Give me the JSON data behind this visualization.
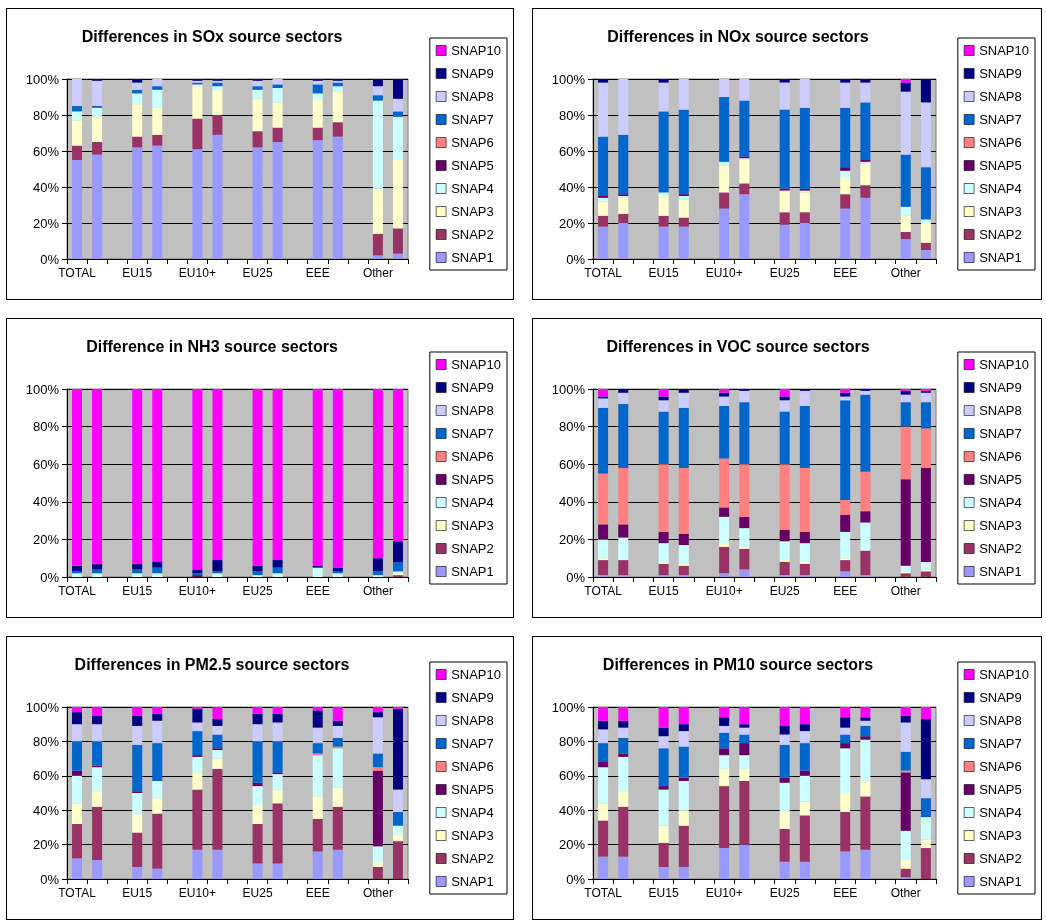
{
  "chart_data": [
    {
      "type": "bar",
      "title": "Differences in SOx source sectors",
      "stacked": true,
      "grid": "y",
      "legend": "right",
      "ylim": [
        0,
        100
      ],
      "yticks": [
        {
          "value": 0,
          "label": "0%"
        },
        {
          "value": 20,
          "label": "20%"
        },
        {
          "value": 40,
          "label": "40%"
        },
        {
          "value": 60,
          "label": "60%"
        },
        {
          "value": 80,
          "label": "80%"
        },
        {
          "value": 100,
          "label": "100%"
        }
      ],
      "categories": [
        "TOTAL",
        null,
        null,
        "EU15",
        null,
        null,
        "EU10+",
        null,
        null,
        "EU25",
        null,
        null,
        "EEE",
        null,
        null,
        "Other",
        null
      ],
      "series": [
        {
          "name": "SNAP1",
          "color": "#9999ff",
          "values": [
            55,
            58,
            null,
            62,
            63,
            null,
            61,
            69,
            null,
            62,
            65,
            null,
            66,
            68,
            null,
            2,
            3
          ]
        },
        {
          "name": "SNAP2",
          "color": "#993366",
          "values": [
            8,
            7,
            null,
            6,
            6,
            null,
            17,
            11,
            null,
            9,
            8,
            null,
            7,
            8,
            null,
            12,
            14
          ]
        },
        {
          "name": "SNAP3",
          "color": "#ffffcc",
          "values": [
            14,
            14,
            null,
            18,
            15,
            null,
            18,
            14,
            null,
            18,
            14,
            null,
            16,
            17,
            null,
            25,
            38
          ]
        },
        {
          "name": "SNAP4",
          "color": "#ccffff",
          "values": [
            5,
            5,
            null,
            6,
            10,
            null,
            1,
            2,
            null,
            5,
            8,
            null,
            3,
            3,
            null,
            49,
            24
          ]
        },
        {
          "name": "SNAP5",
          "color": "#660066",
          "values": [
            0,
            0,
            null,
            0,
            0,
            null,
            0,
            0,
            null,
            0,
            0,
            null,
            0,
            0,
            null,
            0,
            0
          ]
        },
        {
          "name": "SNAP6",
          "color": "#ff8080",
          "values": [
            0,
            0,
            null,
            0,
            0,
            null,
            0,
            0,
            null,
            0,
            0,
            null,
            0,
            0,
            null,
            0,
            0
          ]
        },
        {
          "name": "SNAP7",
          "color": "#0066cc",
          "values": [
            3,
            1,
            null,
            2,
            2,
            null,
            1,
            2,
            null,
            2,
            2,
            null,
            5,
            2,
            null,
            3,
            3
          ]
        },
        {
          "name": "SNAP8",
          "color": "#ccccff",
          "values": [
            15,
            14,
            null,
            4,
            4,
            null,
            1,
            1,
            null,
            3,
            3,
            null,
            2,
            1,
            null,
            5,
            7
          ]
        },
        {
          "name": "SNAP9",
          "color": "#000080",
          "values": [
            0,
            1,
            null,
            2,
            0,
            null,
            1,
            1,
            null,
            1,
            0,
            null,
            1,
            1,
            null,
            4,
            11
          ]
        },
        {
          "name": "SNAP10",
          "color": "#ff00ff",
          "values": [
            0,
            0,
            null,
            0,
            0,
            null,
            0,
            0,
            null,
            0,
            0,
            null,
            0,
            0,
            null,
            0,
            0
          ]
        }
      ]
    },
    {
      "type": "bar",
      "title": "Differences in NOx source sectors",
      "stacked": true,
      "grid": "y",
      "legend": "right",
      "ylim": [
        0,
        100
      ],
      "yticks": [
        {
          "value": 0,
          "label": "0%"
        },
        {
          "value": 20,
          "label": "20%"
        },
        {
          "value": 40,
          "label": "40%"
        },
        {
          "value": 60,
          "label": "60%"
        },
        {
          "value": 80,
          "label": "80%"
        },
        {
          "value": 100,
          "label": "100%"
        }
      ],
      "categories": [
        "TOTAL",
        null,
        null,
        "EU15",
        null,
        null,
        "EU10+",
        null,
        null,
        "EU25",
        null,
        null,
        "EEE",
        null,
        null,
        "Other",
        null
      ],
      "series": [
        {
          "name": "SNAP1",
          "color": "#9999ff",
          "values": [
            18,
            20,
            null,
            18,
            18,
            null,
            28,
            36,
            null,
            19,
            20,
            null,
            28,
            34,
            null,
            11,
            5
          ]
        },
        {
          "name": "SNAP2",
          "color": "#993366",
          "values": [
            6,
            5,
            null,
            6,
            5,
            null,
            9,
            6,
            null,
            7,
            6,
            null,
            8,
            7,
            null,
            4,
            4
          ]
        },
        {
          "name": "SNAP3",
          "color": "#ffffcc",
          "values": [
            8,
            9,
            null,
            11,
            10,
            null,
            15,
            13,
            null,
            12,
            11,
            null,
            9,
            12,
            null,
            9,
            11
          ]
        },
        {
          "name": "SNAP4",
          "color": "#ccffff",
          "values": [
            2,
            1,
            null,
            2,
            2,
            null,
            2,
            1,
            null,
            0,
            1,
            null,
            4,
            1,
            null,
            5,
            2
          ]
        },
        {
          "name": "SNAP5",
          "color": "#660066",
          "values": [
            1,
            1,
            null,
            0,
            1,
            null,
            0,
            1,
            null,
            1,
            1,
            null,
            2,
            1,
            null,
            0,
            0
          ]
        },
        {
          "name": "SNAP6",
          "color": "#ff8080",
          "values": [
            0,
            0,
            null,
            0,
            0,
            null,
            0,
            0,
            null,
            0,
            0,
            null,
            0,
            0,
            null,
            0,
            0
          ]
        },
        {
          "name": "SNAP7",
          "color": "#0066cc",
          "values": [
            33,
            33,
            null,
            45,
            47,
            null,
            36,
            31,
            null,
            44,
            45,
            null,
            33,
            32,
            null,
            29,
            29
          ]
        },
        {
          "name": "SNAP8",
          "color": "#ccccff",
          "values": [
            30,
            31,
            null,
            16,
            17,
            null,
            10,
            12,
            null,
            15,
            16,
            null,
            14,
            11,
            null,
            35,
            36
          ]
        },
        {
          "name": "SNAP9",
          "color": "#000080",
          "values": [
            2,
            0,
            null,
            2,
            0,
            null,
            0,
            0,
            null,
            2,
            0,
            null,
            2,
            2,
            null,
            5,
            13
          ]
        },
        {
          "name": "SNAP10",
          "color": "#ff00ff",
          "values": [
            0,
            0,
            null,
            0,
            0,
            null,
            0,
            0,
            null,
            0,
            0,
            null,
            0,
            0,
            null,
            2,
            0
          ]
        }
      ]
    },
    {
      "type": "bar",
      "title": "Difference in NH3 source sectors",
      "stacked": true,
      "grid": "y",
      "legend": "right",
      "ylim": [
        0,
        100
      ],
      "yticks": [
        {
          "value": 0,
          "label": "0%"
        },
        {
          "value": 20,
          "label": "20%"
        },
        {
          "value": 40,
          "label": "40%"
        },
        {
          "value": 60,
          "label": "60%"
        },
        {
          "value": 80,
          "label": "80%"
        },
        {
          "value": 100,
          "label": "100%"
        }
      ],
      "categories": [
        "TOTAL",
        null,
        null,
        "EU15",
        null,
        null,
        "EU10+",
        null,
        null,
        "EU25",
        null,
        null,
        "EEE",
        null,
        null,
        "Other",
        null
      ],
      "series": [
        {
          "name": "SNAP1",
          "color": "#9999ff",
          "values": [
            0,
            0,
            null,
            0,
            0,
            null,
            0,
            0,
            null,
            0,
            0,
            null,
            0,
            0,
            null,
            0,
            0
          ]
        },
        {
          "name": "SNAP2",
          "color": "#993366",
          "values": [
            0,
            0,
            null,
            0,
            0,
            null,
            0,
            0,
            null,
            0,
            0,
            null,
            0,
            0,
            null,
            0,
            1
          ]
        },
        {
          "name": "SNAP3",
          "color": "#ffffcc",
          "values": [
            0,
            0,
            null,
            0,
            0,
            null,
            0,
            0,
            null,
            0,
            0,
            null,
            0,
            0,
            null,
            0,
            1
          ]
        },
        {
          "name": "SNAP4",
          "color": "#ccffff",
          "values": [
            2,
            2,
            null,
            2,
            2,
            null,
            0,
            2,
            null,
            1,
            2,
            null,
            5,
            2,
            null,
            1,
            1
          ]
        },
        {
          "name": "SNAP5",
          "color": "#660066",
          "values": [
            0,
            0,
            null,
            0,
            0,
            null,
            1,
            0,
            null,
            0,
            0,
            null,
            0,
            0,
            null,
            0,
            0
          ]
        },
        {
          "name": "SNAP6",
          "color": "#ff8080",
          "values": [
            0,
            0,
            null,
            0,
            0,
            null,
            0,
            0,
            null,
            0,
            0,
            null,
            0,
            0,
            null,
            0,
            0
          ]
        },
        {
          "name": "SNAP7",
          "color": "#0066cc",
          "values": [
            1,
            2,
            null,
            2,
            3,
            null,
            1,
            1,
            null,
            2,
            3,
            null,
            0,
            1,
            null,
            2,
            5
          ]
        },
        {
          "name": "SNAP8",
          "color": "#ccccff",
          "values": [
            0,
            0,
            null,
            0,
            0,
            null,
            0,
            0,
            null,
            0,
            0,
            null,
            0,
            0,
            null,
            0,
            0
          ]
        },
        {
          "name": "SNAP9",
          "color": "#000080",
          "values": [
            3,
            3,
            null,
            3,
            3,
            null,
            2,
            6,
            null,
            3,
            4,
            null,
            1,
            2,
            null,
            7,
            11
          ]
        },
        {
          "name": "SNAP10",
          "color": "#ff00ff",
          "values": [
            94,
            93,
            null,
            93,
            92,
            null,
            96,
            91,
            null,
            94,
            91,
            null,
            94,
            95,
            null,
            90,
            81
          ]
        }
      ]
    },
    {
      "type": "bar",
      "title": "Differences in VOC source sectors",
      "stacked": true,
      "grid": "y",
      "legend": "right",
      "ylim": [
        0,
        100
      ],
      "yticks": [
        {
          "value": 0,
          "label": "0%"
        },
        {
          "value": 20,
          "label": "20%"
        },
        {
          "value": 40,
          "label": "40%"
        },
        {
          "value": 60,
          "label": "60%"
        },
        {
          "value": 80,
          "label": "80%"
        },
        {
          "value": 100,
          "label": "100%"
        }
      ],
      "categories": [
        "TOTAL",
        null,
        null,
        "EU15",
        null,
        null,
        "EU10+",
        null,
        null,
        "EU25",
        null,
        null,
        "EEE",
        null,
        null,
        "Other",
        null
      ],
      "series": [
        {
          "name": "SNAP1",
          "color": "#9999ff",
          "values": [
            1,
            1,
            null,
            1,
            1,
            null,
            2,
            4,
            null,
            1,
            1,
            null,
            3,
            1,
            null,
            0,
            0
          ]
        },
        {
          "name": "SNAP2",
          "color": "#993366",
          "values": [
            8,
            8,
            null,
            6,
            5,
            null,
            14,
            11,
            null,
            7,
            6,
            null,
            6,
            13,
            null,
            2,
            3
          ]
        },
        {
          "name": "SNAP3",
          "color": "#ffffcc",
          "values": [
            1,
            0,
            null,
            1,
            1,
            null,
            2,
            1,
            null,
            1,
            1,
            null,
            1,
            0,
            null,
            1,
            1
          ]
        },
        {
          "name": "SNAP4",
          "color": "#ccffff",
          "values": [
            10,
            12,
            null,
            10,
            10,
            null,
            14,
            10,
            null,
            10,
            10,
            null,
            14,
            15,
            null,
            3,
            4
          ]
        },
        {
          "name": "SNAP5",
          "color": "#660066",
          "values": [
            8,
            7,
            null,
            6,
            6,
            null,
            5,
            6,
            null,
            6,
            6,
            null,
            9,
            6,
            null,
            46,
            50
          ]
        },
        {
          "name": "SNAP6",
          "color": "#ff8080",
          "values": [
            27,
            30,
            null,
            36,
            35,
            null,
            26,
            28,
            null,
            35,
            34,
            null,
            8,
            21,
            null,
            28,
            21
          ]
        },
        {
          "name": "SNAP7",
          "color": "#0066cc",
          "values": [
            35,
            34,
            null,
            28,
            32,
            null,
            28,
            33,
            null,
            28,
            33,
            null,
            53,
            41,
            null,
            13,
            14
          ]
        },
        {
          "name": "SNAP8",
          "color": "#ccccff",
          "values": [
            5,
            6,
            null,
            6,
            8,
            null,
            5,
            6,
            null,
            6,
            8,
            null,
            2,
            2,
            null,
            4,
            5
          ]
        },
        {
          "name": "SNAP9",
          "color": "#000080",
          "values": [
            1,
            2,
            null,
            2,
            2,
            null,
            2,
            1,
            null,
            2,
            1,
            null,
            2,
            1,
            null,
            2,
            1
          ]
        },
        {
          "name": "SNAP10",
          "color": "#ff00ff",
          "values": [
            4,
            0,
            null,
            4,
            0,
            null,
            2,
            0,
            null,
            4,
            0,
            null,
            2,
            0,
            null,
            1,
            1
          ]
        }
      ]
    },
    {
      "type": "bar",
      "title": "Differences in PM2.5 source sectors",
      "stacked": true,
      "grid": "y",
      "legend": "right",
      "ylim": [
        0,
        100
      ],
      "yticks": [
        {
          "value": 0,
          "label": "0%"
        },
        {
          "value": 20,
          "label": "20%"
        },
        {
          "value": 40,
          "label": "40%"
        },
        {
          "value": 60,
          "label": "60%"
        },
        {
          "value": 80,
          "label": "80%"
        },
        {
          "value": 100,
          "label": "100%"
        }
      ],
      "categories": [
        "TOTAL",
        null,
        null,
        "EU15",
        null,
        null,
        "EU10+",
        null,
        null,
        "EU25",
        null,
        null,
        "EEE",
        null,
        null,
        "Other",
        null
      ],
      "series": [
        {
          "name": "SNAP1",
          "color": "#9999ff",
          "values": [
            12,
            11,
            null,
            7,
            6,
            null,
            17,
            17,
            null,
            9,
            9,
            null,
            16,
            17,
            null,
            0,
            0
          ]
        },
        {
          "name": "SNAP2",
          "color": "#993366",
          "values": [
            20,
            31,
            null,
            20,
            32,
            null,
            35,
            47,
            null,
            23,
            35,
            null,
            19,
            25,
            null,
            7,
            22
          ]
        },
        {
          "name": "SNAP3",
          "color": "#ffffcc",
          "values": [
            12,
            9,
            null,
            11,
            9,
            null,
            10,
            6,
            null,
            11,
            8,
            null,
            13,
            11,
            null,
            3,
            4
          ]
        },
        {
          "name": "SNAP4",
          "color": "#ccffff",
          "values": [
            16,
            14,
            null,
            12,
            10,
            null,
            9,
            5,
            null,
            11,
            9,
            null,
            24,
            23,
            null,
            9,
            5
          ]
        },
        {
          "name": "SNAP5",
          "color": "#660066",
          "values": [
            3,
            1,
            null,
            1,
            0,
            null,
            1,
            1,
            null,
            2,
            1,
            null,
            0,
            0,
            null,
            44,
            0
          ]
        },
        {
          "name": "SNAP6",
          "color": "#ff8080",
          "values": [
            0,
            0,
            null,
            0,
            0,
            null,
            0,
            0,
            null,
            0,
            0,
            null,
            1,
            1,
            null,
            2,
            0
          ]
        },
        {
          "name": "SNAP7",
          "color": "#0066cc",
          "values": [
            17,
            14,
            null,
            27,
            22,
            null,
            14,
            8,
            null,
            24,
            18,
            null,
            6,
            5,
            null,
            8,
            8
          ]
        },
        {
          "name": "SNAP8",
          "color": "#ccccff",
          "values": [
            10,
            10,
            null,
            11,
            13,
            null,
            5,
            5,
            null,
            10,
            11,
            null,
            9,
            7,
            null,
            21,
            13
          ]
        },
        {
          "name": "SNAP9",
          "color": "#000080",
          "values": [
            7,
            5,
            null,
            6,
            4,
            null,
            8,
            4,
            null,
            6,
            5,
            null,
            10,
            3,
            null,
            3,
            47
          ]
        },
        {
          "name": "SNAP10",
          "color": "#ff00ff",
          "values": [
            3,
            5,
            null,
            5,
            4,
            null,
            1,
            7,
            null,
            4,
            4,
            null,
            2,
            8,
            null,
            3,
            1
          ]
        }
      ]
    },
    {
      "type": "bar",
      "title": "Differences in PM10 source sectors",
      "stacked": true,
      "grid": "y",
      "legend": "right",
      "ylim": [
        0,
        100
      ],
      "yticks": [
        {
          "value": 0,
          "label": "0%"
        },
        {
          "value": 20,
          "label": "20%"
        },
        {
          "value": 40,
          "label": "40%"
        },
        {
          "value": 60,
          "label": "60%"
        },
        {
          "value": 80,
          "label": "80%"
        },
        {
          "value": 100,
          "label": "100%"
        }
      ],
      "categories": [
        "TOTAL",
        null,
        null,
        "EU15",
        null,
        null,
        "EU10+",
        null,
        null,
        "EU25",
        null,
        null,
        "EEE",
        null,
        null,
        "Other",
        null
      ],
      "series": [
        {
          "name": "SNAP1",
          "color": "#9999ff",
          "values": [
            13,
            13,
            null,
            7,
            7,
            null,
            18,
            20,
            null,
            10,
            10,
            null,
            16,
            17,
            null,
            1,
            0
          ]
        },
        {
          "name": "SNAP2",
          "color": "#993366",
          "values": [
            21,
            29,
            null,
            14,
            24,
            null,
            36,
            37,
            null,
            19,
            27,
            null,
            23,
            31,
            null,
            5,
            18
          ]
        },
        {
          "name": "SNAP3",
          "color": "#ffffcc",
          "values": [
            10,
            9,
            null,
            10,
            9,
            null,
            10,
            7,
            null,
            10,
            8,
            null,
            11,
            9,
            null,
            5,
            5
          ]
        },
        {
          "name": "SNAP4",
          "color": "#ccffff",
          "values": [
            21,
            20,
            null,
            21,
            17,
            null,
            8,
            8,
            null,
            17,
            15,
            null,
            26,
            24,
            null,
            17,
            13
          ]
        },
        {
          "name": "SNAP5",
          "color": "#660066",
          "values": [
            3,
            2,
            null,
            2,
            2,
            null,
            4,
            7,
            null,
            3,
            3,
            null,
            3,
            2,
            null,
            34,
            0
          ]
        },
        {
          "name": "SNAP6",
          "color": "#ff8080",
          "values": [
            0,
            0,
            null,
            0,
            0,
            null,
            0,
            0,
            null,
            0,
            0,
            null,
            0,
            0,
            null,
            1,
            0
          ]
        },
        {
          "name": "SNAP7",
          "color": "#0066cc",
          "values": [
            11,
            9,
            null,
            22,
            18,
            null,
            9,
            5,
            null,
            19,
            16,
            null,
            5,
            6,
            null,
            11,
            11
          ]
        },
        {
          "name": "SNAP8",
          "color": "#ccccff",
          "values": [
            8,
            6,
            null,
            7,
            9,
            null,
            4,
            4,
            null,
            6,
            7,
            null,
            4,
            3,
            null,
            17,
            11
          ]
        },
        {
          "name": "SNAP9",
          "color": "#000080",
          "values": [
            5,
            4,
            null,
            5,
            4,
            null,
            5,
            2,
            null,
            5,
            4,
            null,
            6,
            2,
            null,
            4,
            35
          ]
        },
        {
          "name": "SNAP10",
          "color": "#ff00ff",
          "values": [
            8,
            8,
            null,
            12,
            10,
            null,
            6,
            10,
            null,
            11,
            10,
            null,
            6,
            6,
            null,
            5,
            7
          ]
        }
      ]
    }
  ]
}
